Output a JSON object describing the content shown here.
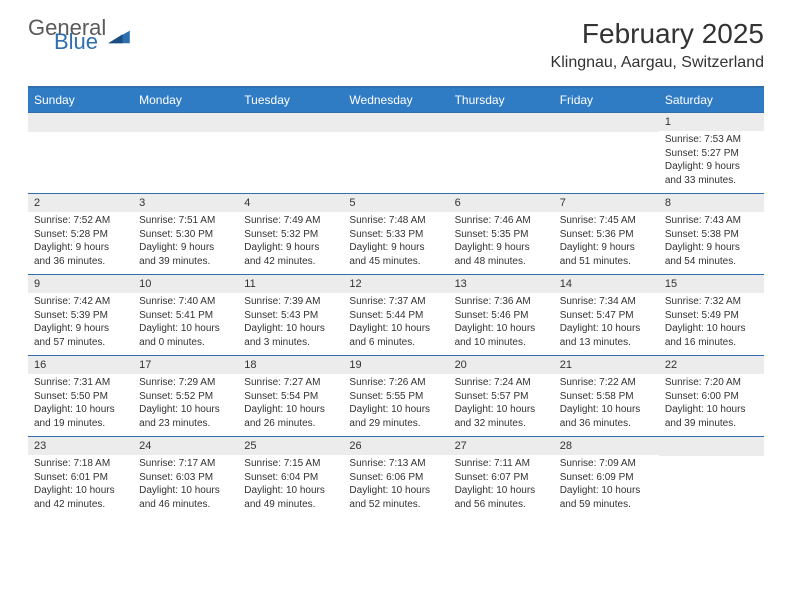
{
  "brand": {
    "general": "General",
    "blue": "Blue"
  },
  "title": "February 2025",
  "location": "Klingnau, Aargau, Switzerland",
  "colors": {
    "header_bg": "#2f7bc4",
    "accent": "#2f6fb0",
    "daynum_bg": "#ececec",
    "text": "#333333",
    "bg": "#ffffff"
  },
  "day_headers": [
    "Sunday",
    "Monday",
    "Tuesday",
    "Wednesday",
    "Thursday",
    "Friday",
    "Saturday"
  ],
  "weeks": [
    [
      null,
      null,
      null,
      null,
      null,
      null,
      {
        "n": "1",
        "sr": "Sunrise: 7:53 AM",
        "ss": "Sunset: 5:27 PM",
        "d1": "Daylight: 9 hours",
        "d2": "and 33 minutes."
      }
    ],
    [
      {
        "n": "2",
        "sr": "Sunrise: 7:52 AM",
        "ss": "Sunset: 5:28 PM",
        "d1": "Daylight: 9 hours",
        "d2": "and 36 minutes."
      },
      {
        "n": "3",
        "sr": "Sunrise: 7:51 AM",
        "ss": "Sunset: 5:30 PM",
        "d1": "Daylight: 9 hours",
        "d2": "and 39 minutes."
      },
      {
        "n": "4",
        "sr": "Sunrise: 7:49 AM",
        "ss": "Sunset: 5:32 PM",
        "d1": "Daylight: 9 hours",
        "d2": "and 42 minutes."
      },
      {
        "n": "5",
        "sr": "Sunrise: 7:48 AM",
        "ss": "Sunset: 5:33 PM",
        "d1": "Daylight: 9 hours",
        "d2": "and 45 minutes."
      },
      {
        "n": "6",
        "sr": "Sunrise: 7:46 AM",
        "ss": "Sunset: 5:35 PM",
        "d1": "Daylight: 9 hours",
        "d2": "and 48 minutes."
      },
      {
        "n": "7",
        "sr": "Sunrise: 7:45 AM",
        "ss": "Sunset: 5:36 PM",
        "d1": "Daylight: 9 hours",
        "d2": "and 51 minutes."
      },
      {
        "n": "8",
        "sr": "Sunrise: 7:43 AM",
        "ss": "Sunset: 5:38 PM",
        "d1": "Daylight: 9 hours",
        "d2": "and 54 minutes."
      }
    ],
    [
      {
        "n": "9",
        "sr": "Sunrise: 7:42 AM",
        "ss": "Sunset: 5:39 PM",
        "d1": "Daylight: 9 hours",
        "d2": "and 57 minutes."
      },
      {
        "n": "10",
        "sr": "Sunrise: 7:40 AM",
        "ss": "Sunset: 5:41 PM",
        "d1": "Daylight: 10 hours",
        "d2": "and 0 minutes."
      },
      {
        "n": "11",
        "sr": "Sunrise: 7:39 AM",
        "ss": "Sunset: 5:43 PM",
        "d1": "Daylight: 10 hours",
        "d2": "and 3 minutes."
      },
      {
        "n": "12",
        "sr": "Sunrise: 7:37 AM",
        "ss": "Sunset: 5:44 PM",
        "d1": "Daylight: 10 hours",
        "d2": "and 6 minutes."
      },
      {
        "n": "13",
        "sr": "Sunrise: 7:36 AM",
        "ss": "Sunset: 5:46 PM",
        "d1": "Daylight: 10 hours",
        "d2": "and 10 minutes."
      },
      {
        "n": "14",
        "sr": "Sunrise: 7:34 AM",
        "ss": "Sunset: 5:47 PM",
        "d1": "Daylight: 10 hours",
        "d2": "and 13 minutes."
      },
      {
        "n": "15",
        "sr": "Sunrise: 7:32 AM",
        "ss": "Sunset: 5:49 PM",
        "d1": "Daylight: 10 hours",
        "d2": "and 16 minutes."
      }
    ],
    [
      {
        "n": "16",
        "sr": "Sunrise: 7:31 AM",
        "ss": "Sunset: 5:50 PM",
        "d1": "Daylight: 10 hours",
        "d2": "and 19 minutes."
      },
      {
        "n": "17",
        "sr": "Sunrise: 7:29 AM",
        "ss": "Sunset: 5:52 PM",
        "d1": "Daylight: 10 hours",
        "d2": "and 23 minutes."
      },
      {
        "n": "18",
        "sr": "Sunrise: 7:27 AM",
        "ss": "Sunset: 5:54 PM",
        "d1": "Daylight: 10 hours",
        "d2": "and 26 minutes."
      },
      {
        "n": "19",
        "sr": "Sunrise: 7:26 AM",
        "ss": "Sunset: 5:55 PM",
        "d1": "Daylight: 10 hours",
        "d2": "and 29 minutes."
      },
      {
        "n": "20",
        "sr": "Sunrise: 7:24 AM",
        "ss": "Sunset: 5:57 PM",
        "d1": "Daylight: 10 hours",
        "d2": "and 32 minutes."
      },
      {
        "n": "21",
        "sr": "Sunrise: 7:22 AM",
        "ss": "Sunset: 5:58 PM",
        "d1": "Daylight: 10 hours",
        "d2": "and 36 minutes."
      },
      {
        "n": "22",
        "sr": "Sunrise: 7:20 AM",
        "ss": "Sunset: 6:00 PM",
        "d1": "Daylight: 10 hours",
        "d2": "and 39 minutes."
      }
    ],
    [
      {
        "n": "23",
        "sr": "Sunrise: 7:18 AM",
        "ss": "Sunset: 6:01 PM",
        "d1": "Daylight: 10 hours",
        "d2": "and 42 minutes."
      },
      {
        "n": "24",
        "sr": "Sunrise: 7:17 AM",
        "ss": "Sunset: 6:03 PM",
        "d1": "Daylight: 10 hours",
        "d2": "and 46 minutes."
      },
      {
        "n": "25",
        "sr": "Sunrise: 7:15 AM",
        "ss": "Sunset: 6:04 PM",
        "d1": "Daylight: 10 hours",
        "d2": "and 49 minutes."
      },
      {
        "n": "26",
        "sr": "Sunrise: 7:13 AM",
        "ss": "Sunset: 6:06 PM",
        "d1": "Daylight: 10 hours",
        "d2": "and 52 minutes."
      },
      {
        "n": "27",
        "sr": "Sunrise: 7:11 AM",
        "ss": "Sunset: 6:07 PM",
        "d1": "Daylight: 10 hours",
        "d2": "and 56 minutes."
      },
      {
        "n": "28",
        "sr": "Sunrise: 7:09 AM",
        "ss": "Sunset: 6:09 PM",
        "d1": "Daylight: 10 hours",
        "d2": "and 59 minutes."
      },
      null
    ]
  ]
}
